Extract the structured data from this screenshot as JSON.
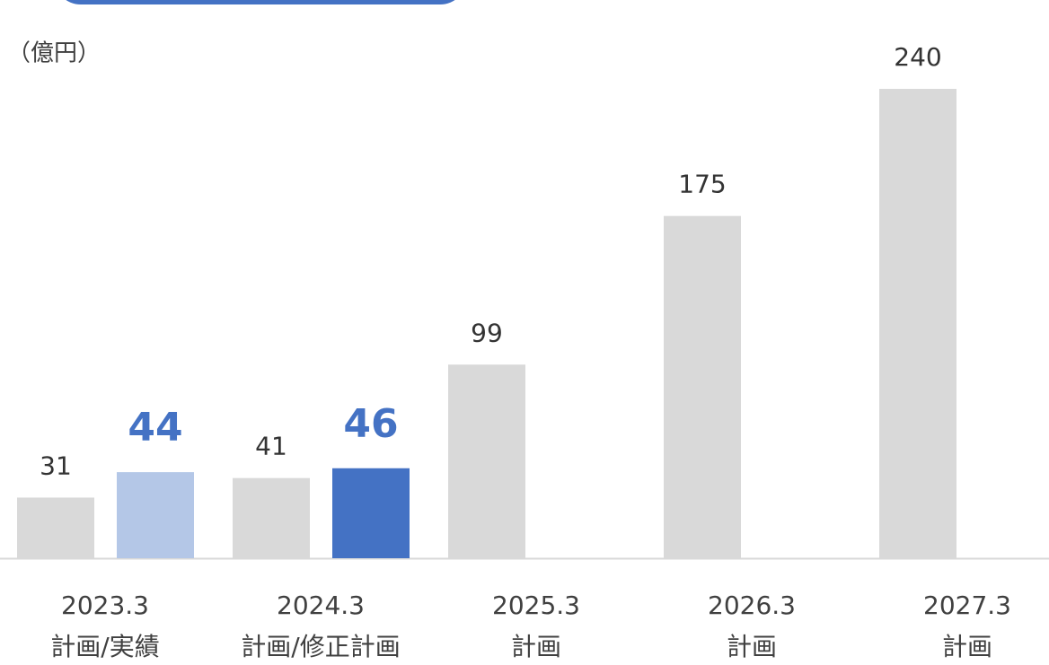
{
  "chart_data": {
    "type": "bar",
    "unit_label": "（億円）",
    "categories": [
      "2023.3",
      "2024.3",
      "2025.3",
      "2026.3",
      "2027.3"
    ],
    "category_sublabels": [
      "計画/実績",
      "計画/修正計画",
      "計画",
      "計画",
      "計画"
    ],
    "series": [
      {
        "color": "#d9d9d9",
        "label_color": "#333333",
        "label_weight": "normal",
        "values": [
          31,
          41,
          99,
          175,
          240
        ]
      },
      {
        "colors": [
          "#b4c7e7",
          "#4472c4",
          null,
          null,
          null
        ],
        "label_color": "#4472c4",
        "label_weight": "bold",
        "values": [
          44,
          46,
          null,
          null,
          null
        ]
      }
    ],
    "ylim": [
      0,
      240
    ]
  }
}
